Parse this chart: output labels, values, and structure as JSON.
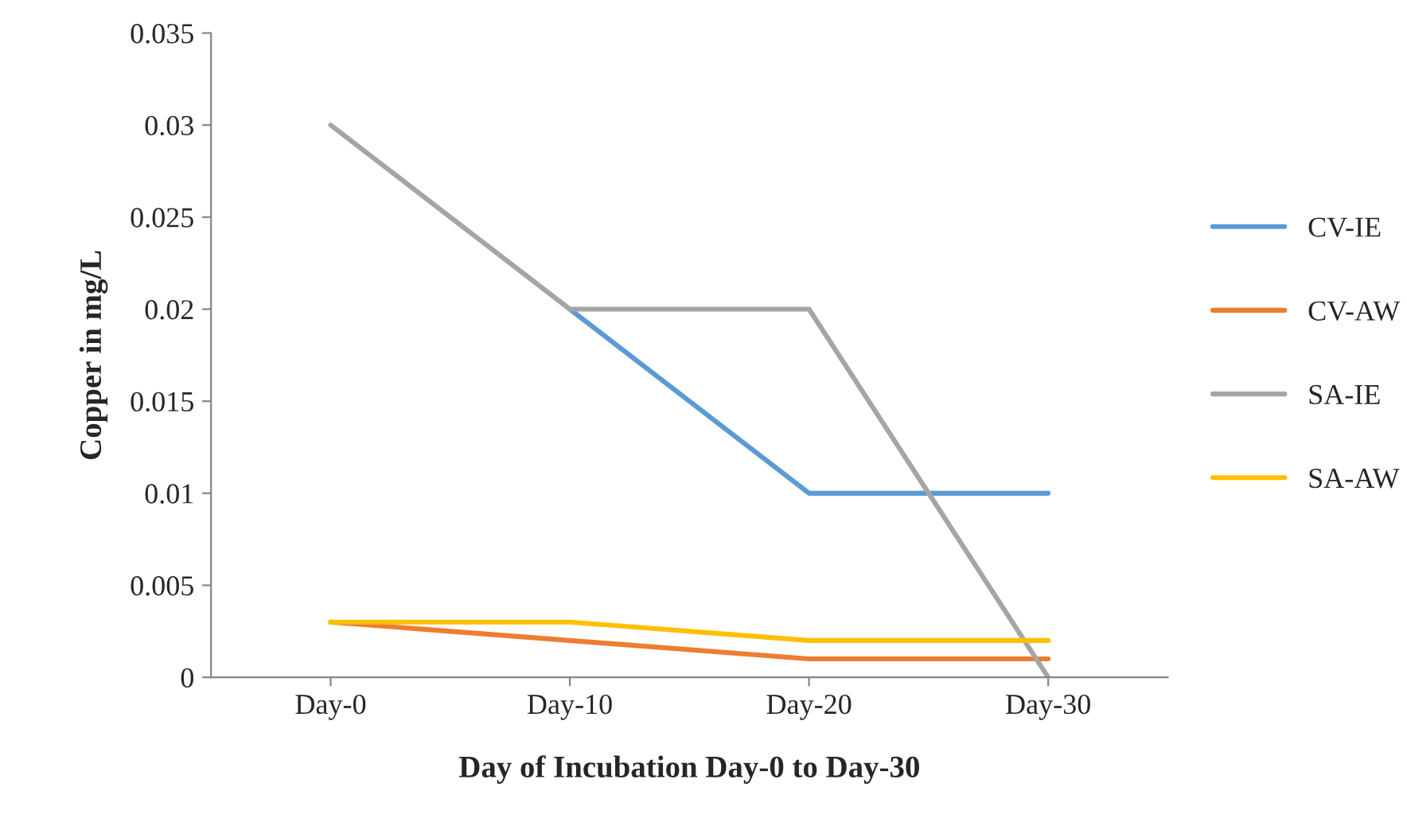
{
  "chart_data": {
    "type": "line",
    "xlabel": "Day of Incubation Day-0 to Day-30",
    "ylabel": "Copper in mg/L",
    "categories": [
      "Day-0",
      "Day-10",
      "Day-20",
      "Day-30"
    ],
    "series": [
      {
        "name": "CV-IE",
        "color": "#5b9bd5",
        "values": [
          null,
          0.02,
          0.01,
          0.01
        ]
      },
      {
        "name": "CV-AW",
        "color": "#ed7d31",
        "values": [
          0.003,
          0.002,
          0.001,
          0.001
        ]
      },
      {
        "name": "SA-IE",
        "color": "#a5a5a5",
        "values": [
          0.03,
          0.02,
          0.02,
          0
        ]
      },
      {
        "name": "SA-AW",
        "color": "#ffc000",
        "values": [
          0.003,
          0.003,
          0.002,
          0.002
        ]
      }
    ],
    "ylim": [
      0,
      0.035
    ],
    "yticks": [
      0,
      0.005,
      0.01,
      0.015,
      0.02,
      0.025,
      0.03,
      0.035
    ],
    "grid": false,
    "legend": "right",
    "marker": "none",
    "line_style": "solid"
  }
}
